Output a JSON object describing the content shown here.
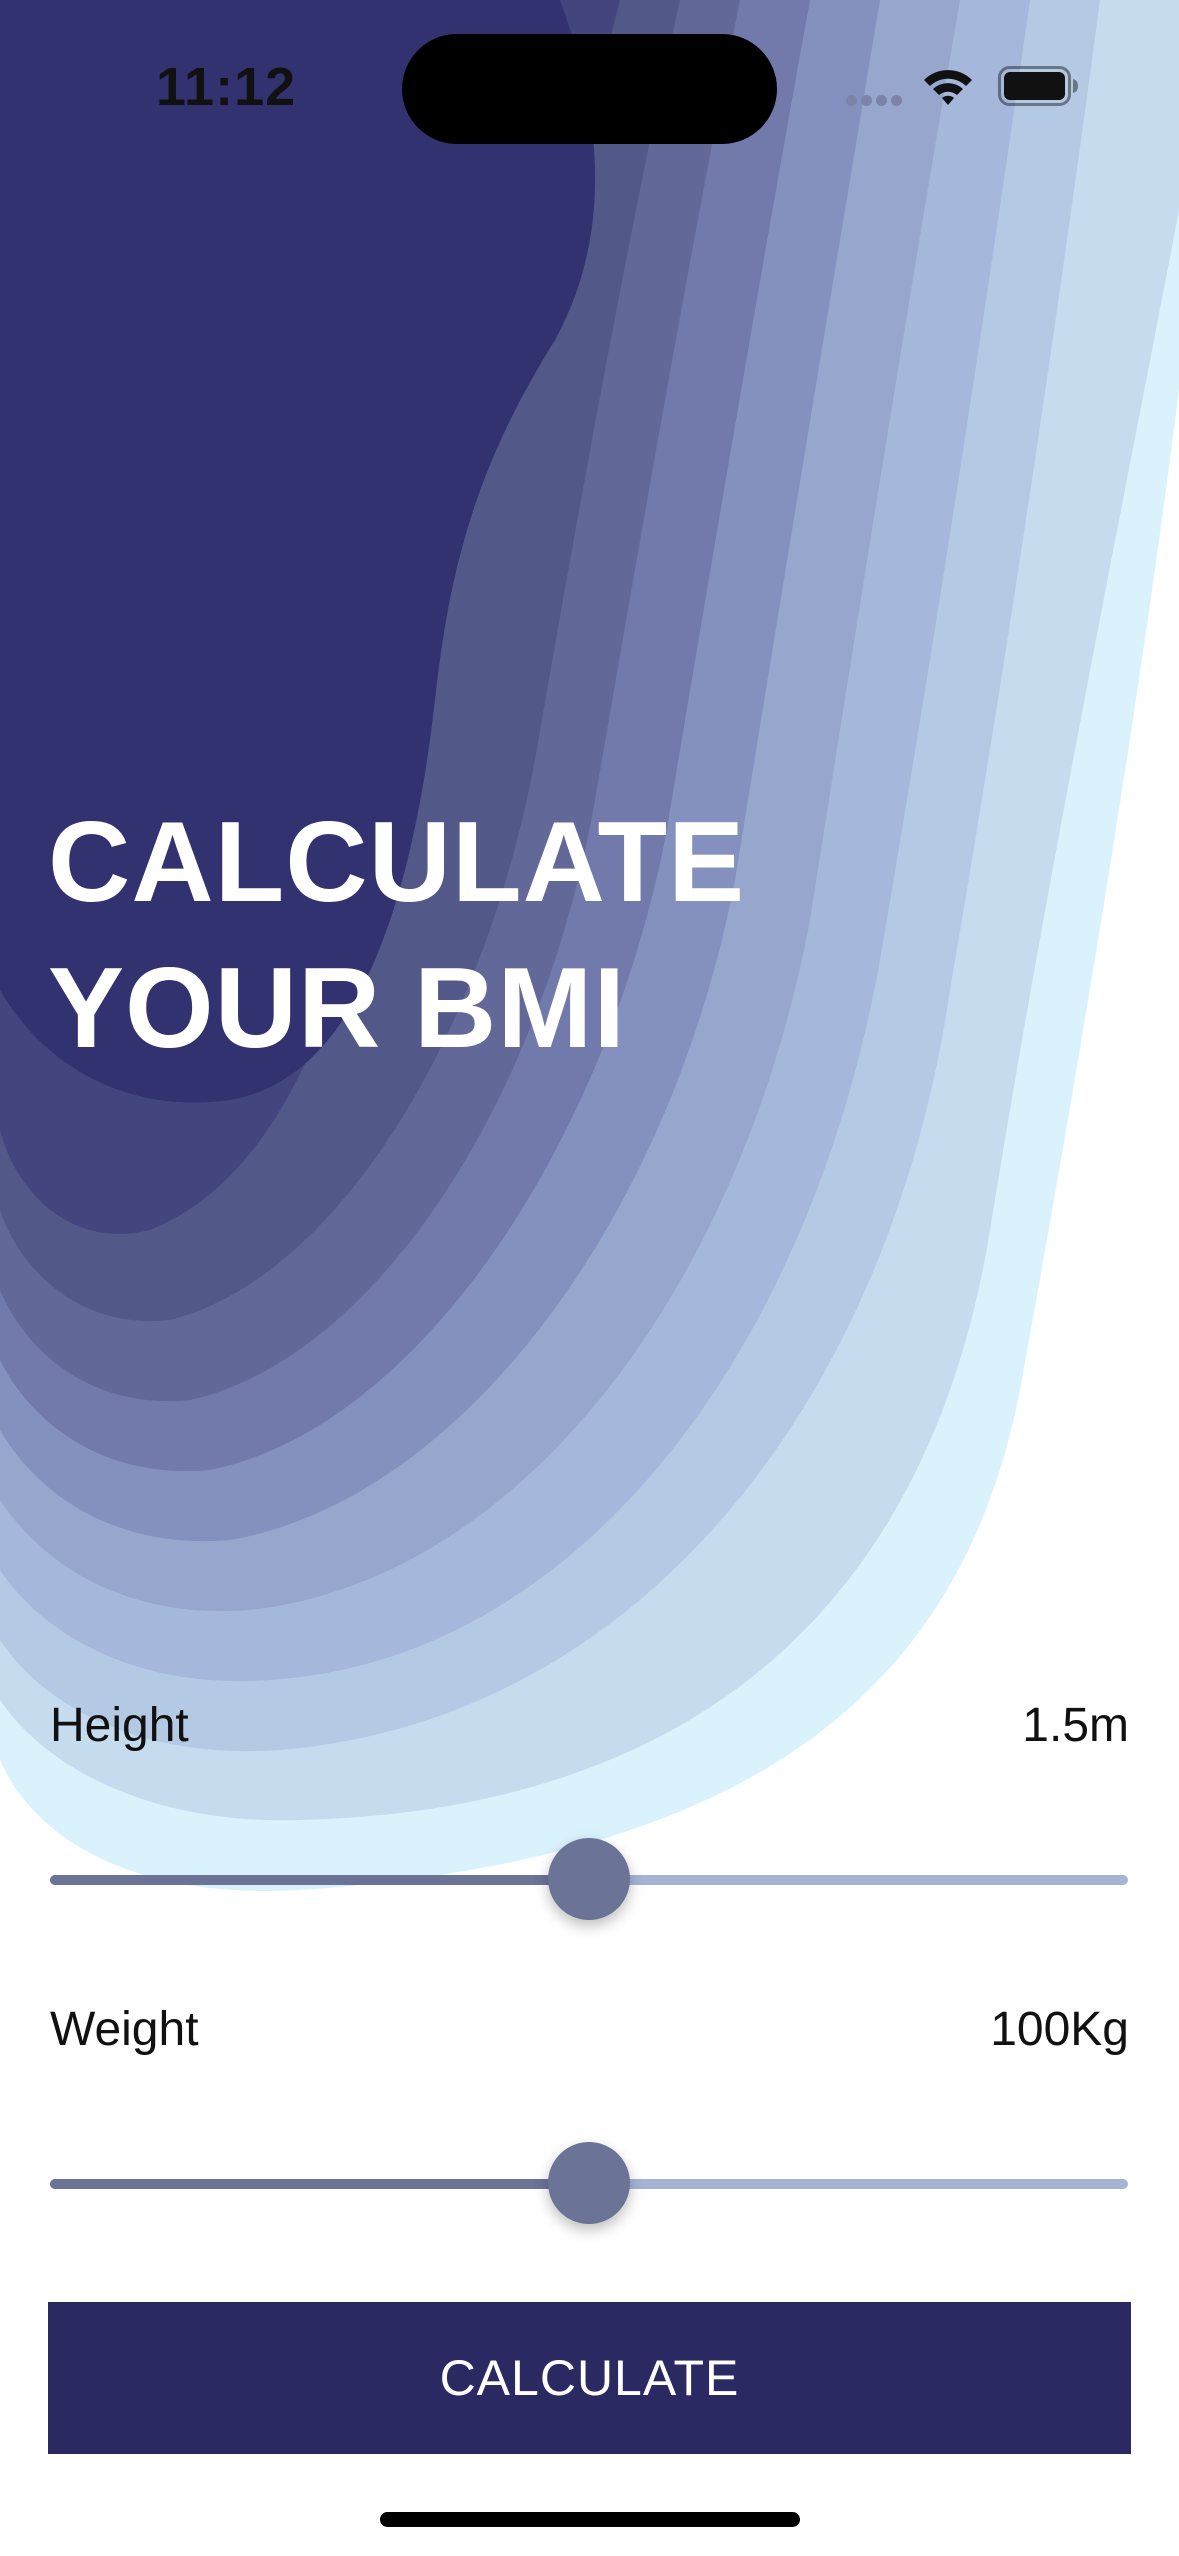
{
  "status_bar": {
    "time": "11:12",
    "icons": [
      "signal-dots-icon",
      "wifi-icon",
      "battery-icon"
    ]
  },
  "hero": {
    "title_line1": "CALCULATE",
    "title_line2": "YOUR BMI"
  },
  "height": {
    "label": "Height",
    "value": "1.5m",
    "slider_fraction": 0.5
  },
  "weight": {
    "label": "Weight",
    "value": "100Kg",
    "slider_fraction": 0.5
  },
  "calculate_button": {
    "label": "CALCULATE"
  },
  "colors": {
    "background_top": "#30316f",
    "button": "#2b2962",
    "slider_active": "#6b7396",
    "slider_inactive": "#a5b4d4",
    "contour_light": "#d6f0fb"
  }
}
